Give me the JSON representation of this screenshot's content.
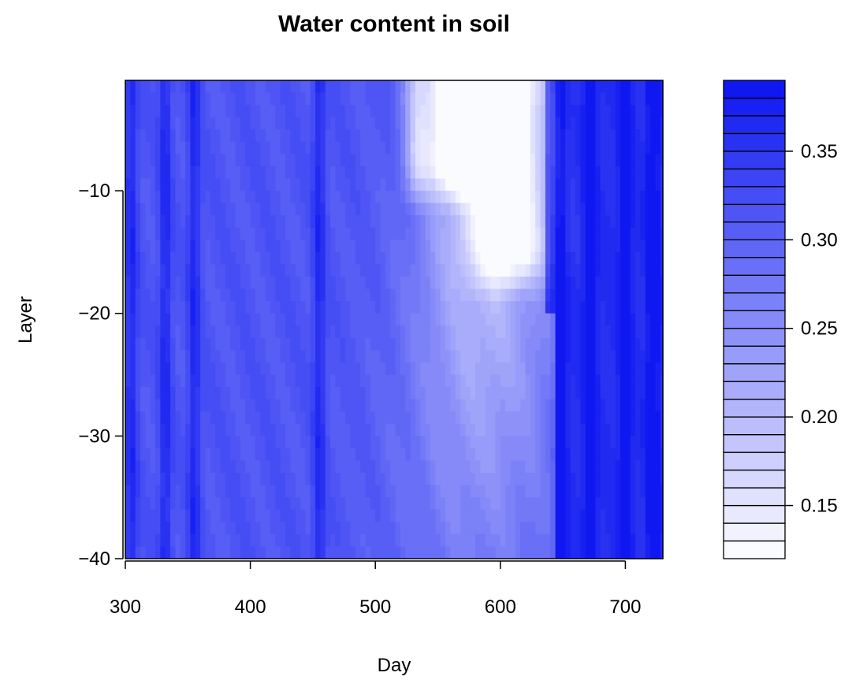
{
  "chart_data": {
    "type": "heatmap",
    "title": "Water content in soil",
    "xlabel": "Day",
    "ylabel": "Layer",
    "xlim": [
      300,
      730
    ],
    "ylim": [
      -40,
      -1
    ],
    "x_ticks": [
      300,
      400,
      500,
      600,
      700
    ],
    "y_ticks": [
      -40,
      -30,
      -20,
      -10
    ],
    "colorbar": {
      "ticks": [
        0.15,
        0.2,
        0.25,
        0.3,
        0.35
      ],
      "tick_labels": [
        "0.15",
        "0.20",
        "0.25",
        "0.30",
        "0.35"
      ],
      "range": [
        0.12,
        0.39
      ],
      "levels": 27,
      "low_color": "#ffffff",
      "high_color": "#0a14f0"
    },
    "pattern": {
      "dry_pulses": [
        {
          "day": 560,
          "width_days": 22,
          "top_layer": -1,
          "bottom_layer": -8,
          "amplitude": 0.16
        },
        {
          "day": 608,
          "width_days": 30,
          "top_layer": -1,
          "bottom_layer": -15,
          "amplitude": 0.14
        },
        {
          "day": 533,
          "width_days": 10,
          "top_layer": -1,
          "bottom_layer": -8,
          "amplitude": 0.08
        }
      ],
      "wet_front_day": 645,
      "wet_bands": [
        305,
        332,
        355,
        455,
        648,
        672,
        700,
        722
      ]
    }
  }
}
